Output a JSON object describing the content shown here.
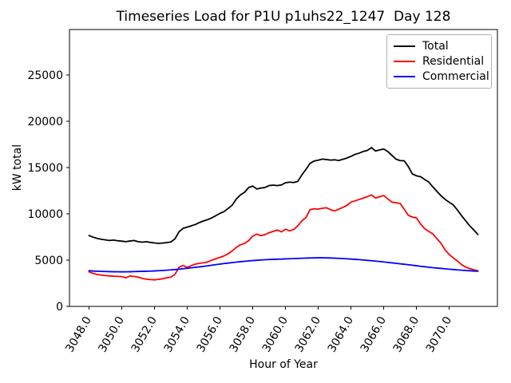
{
  "chart_data": {
    "type": "line",
    "title": "Timeseries Load for P1U p1uhs22_1247  Day 128",
    "xlabel": "Hour of Year",
    "ylabel": "kW total",
    "xlim": [
      3046.81,
      3072.94
    ],
    "ylim": [
      0,
      29900
    ],
    "grid": false,
    "legend_position": "upper right",
    "x_tick_rotation": 60,
    "xticks": {
      "values": [
        3048,
        3050,
        3052,
        3054,
        3056,
        3058,
        3060,
        3062,
        3064,
        3066,
        3068,
        3070
      ],
      "labels": [
        "3048.0",
        "3050.0",
        "3052.0",
        "3054.0",
        "3056.0",
        "3058.0",
        "3060.0",
        "3062.0",
        "3064.0",
        "3066.0",
        "3068.0",
        "3070.0"
      ]
    },
    "yticks": {
      "values": [
        0,
        5000,
        10000,
        15000,
        20000,
        25000
      ],
      "labels": [
        "0",
        "5000",
        "10000",
        "15000",
        "20000",
        "25000"
      ]
    },
    "x": [
      3048.0,
      3048.25,
      3048.5,
      3048.75,
      3049.0,
      3049.25,
      3049.5,
      3049.75,
      3050.0,
      3050.25,
      3050.5,
      3050.75,
      3051.0,
      3051.25,
      3051.5,
      3051.75,
      3052.0,
      3052.25,
      3052.5,
      3052.75,
      3053.0,
      3053.25,
      3053.5,
      3053.75,
      3054.0,
      3054.25,
      3054.5,
      3054.75,
      3055.0,
      3055.25,
      3055.5,
      3055.75,
      3056.0,
      3056.25,
      3056.5,
      3056.75,
      3057.0,
      3057.25,
      3057.5,
      3057.75,
      3058.0,
      3058.25,
      3058.5,
      3058.75,
      3059.0,
      3059.25,
      3059.5,
      3059.75,
      3060.0,
      3060.25,
      3060.5,
      3060.75,
      3061.0,
      3061.25,
      3061.5,
      3061.75,
      3062.0,
      3062.25,
      3062.5,
      3062.75,
      3063.0,
      3063.25,
      3063.5,
      3063.75,
      3064.0,
      3064.25,
      3064.5,
      3064.75,
      3065.0,
      3065.25,
      3065.5,
      3065.75,
      3066.0,
      3066.25,
      3066.5,
      3066.75,
      3067.0,
      3067.25,
      3067.5,
      3067.75,
      3068.0,
      3068.25,
      3068.5,
      3068.75,
      3069.0,
      3069.25,
      3069.5,
      3069.75,
      3070.0,
      3070.25,
      3070.5,
      3070.75,
      3071.0,
      3071.25,
      3071.5,
      3071.75
    ],
    "series": [
      {
        "name": "Total",
        "color": "#000000",
        "values": [
          7650,
          7480,
          7350,
          7250,
          7180,
          7120,
          7160,
          7090,
          7050,
          6990,
          7060,
          7120,
          6990,
          6940,
          6990,
          6910,
          6850,
          6810,
          6840,
          6890,
          6960,
          7290,
          8060,
          8430,
          8560,
          8700,
          8850,
          9060,
          9230,
          9370,
          9560,
          9800,
          10050,
          10240,
          10580,
          10940,
          11600,
          12040,
          12320,
          12840,
          12990,
          12680,
          12780,
          12840,
          13050,
          13100,
          13040,
          13120,
          13350,
          13420,
          13380,
          13500,
          14200,
          14800,
          15450,
          15700,
          15790,
          15910,
          15860,
          15800,
          15830,
          15760,
          15890,
          16020,
          16210,
          16420,
          16550,
          16730,
          16850,
          17150,
          16780,
          16900,
          17000,
          16720,
          16300,
          15900,
          15750,
          15720,
          15100,
          14300,
          14100,
          14000,
          13700,
          13430,
          12900,
          12410,
          11950,
          11550,
          11250,
          10950,
          10400,
          9800,
          9250,
          8700,
          8250,
          7760
        ]
      },
      {
        "name": "Residential",
        "color": "#ff0000",
        "values": [
          3730,
          3560,
          3450,
          3380,
          3330,
          3290,
          3260,
          3240,
          3220,
          3090,
          3280,
          3230,
          3170,
          3030,
          2940,
          2900,
          2870,
          2920,
          2990,
          3080,
          3170,
          3450,
          4230,
          4420,
          4220,
          4400,
          4570,
          4650,
          4710,
          4800,
          5000,
          5150,
          5300,
          5450,
          5690,
          6000,
          6380,
          6650,
          6800,
          7100,
          7600,
          7800,
          7650,
          7750,
          7960,
          8100,
          8250,
          8050,
          8330,
          8160,
          8300,
          8700,
          9250,
          9600,
          10450,
          10540,
          10500,
          10600,
          10650,
          10450,
          10300,
          10500,
          10690,
          10900,
          11260,
          11400,
          11550,
          11700,
          11850,
          12040,
          11700,
          11850,
          11980,
          11600,
          11260,
          11200,
          11120,
          10500,
          9830,
          9650,
          9540,
          8900,
          8390,
          8100,
          7820,
          7300,
          6810,
          6090,
          5600,
          5230,
          4900,
          4510,
          4250,
          4080,
          3950,
          3850
        ]
      },
      {
        "name": "Commercial",
        "color": "#0000ff",
        "values": [
          3850,
          3820,
          3800,
          3780,
          3770,
          3755,
          3745,
          3735,
          3730,
          3735,
          3745,
          3760,
          3775,
          3785,
          3795,
          3810,
          3830,
          3855,
          3880,
          3910,
          3940,
          3980,
          4020,
          4070,
          4120,
          4170,
          4220,
          4270,
          4320,
          4380,
          4450,
          4510,
          4570,
          4630,
          4680,
          4730,
          4780,
          4830,
          4870,
          4910,
          4950,
          4980,
          5010,
          5040,
          5060,
          5080,
          5100,
          5110,
          5130,
          5150,
          5160,
          5180,
          5200,
          5220,
          5230,
          5240,
          5250,
          5250,
          5240,
          5230,
          5210,
          5190,
          5170,
          5140,
          5110,
          5080,
          5050,
          5010,
          4970,
          4930,
          4890,
          4850,
          4800,
          4750,
          4700,
          4650,
          4600,
          4550,
          4500,
          4450,
          4390,
          4330,
          4280,
          4230,
          4180,
          4140,
          4100,
          4060,
          4020,
          3980,
          3940,
          3910,
          3880,
          3850,
          3820,
          3800
        ]
      }
    ]
  }
}
